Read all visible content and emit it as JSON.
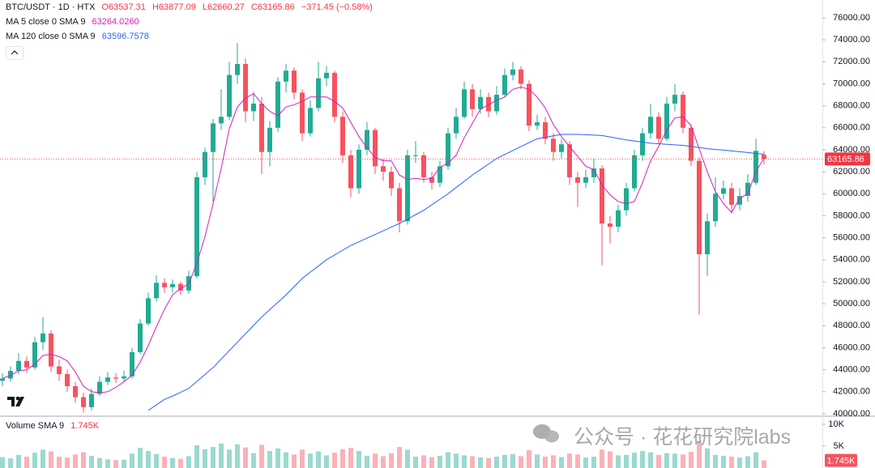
{
  "chart_data": {
    "type": "candlestick",
    "title": "BTC/USDT · 1D · HTX",
    "legend_ohlc": [
      "O63537.31",
      "H63877.09",
      "L62660.27",
      "C63165.86",
      "−371.45 (−0.58%)"
    ],
    "up_color": "#22ab94",
    "down_color": "#f7525f",
    "grid": false,
    "ylim": [
      39850,
      77620
    ],
    "yticks": [
      {
        "value": 40000,
        "label": "40000.00"
      },
      {
        "value": 42000,
        "label": "42000.00"
      },
      {
        "value": 44000,
        "label": "44000.00"
      },
      {
        "value": 46000,
        "label": "46000.00"
      },
      {
        "value": 48000,
        "label": "48000.00"
      },
      {
        "value": 50000,
        "label": "50000.00"
      },
      {
        "value": 52000,
        "label": "52000.00"
      },
      {
        "value": 54000,
        "label": "54000.00"
      },
      {
        "value": 56000,
        "label": "56000.00"
      },
      {
        "value": 58000,
        "label": "58000.00"
      },
      {
        "value": 60000,
        "label": "60000.00"
      },
      {
        "value": 62000,
        "label": "62000.00"
      },
      {
        "value": 64000,
        "label": "64000.00"
      },
      {
        "value": 66000,
        "label": "66000.00"
      },
      {
        "value": 68000,
        "label": "68000.00"
      },
      {
        "value": 70000,
        "label": "70000.00"
      },
      {
        "value": 72000,
        "label": "72000.00"
      },
      {
        "value": 74000,
        "label": "74000.00"
      },
      {
        "value": 76000,
        "label": "76000.00"
      }
    ],
    "open": [
      43000,
      43200,
      43900,
      44800,
      44200,
      46500,
      47300,
      44300,
      43600,
      42500,
      41500,
      40600,
      41800,
      42900,
      43300,
      43200,
      43400,
      45600,
      48200,
      50500,
      51900,
      51500,
      51800,
      51200,
      52500,
      61500,
      63800,
      66400,
      67000,
      70800,
      71800,
      67500,
      68200,
      63800,
      66000,
      70200,
      71200,
      69200,
      65500,
      67800,
      70500,
      71000,
      67000,
      63500,
      60500,
      64000,
      65800,
      62500,
      62000,
      60500,
      57500,
      63500,
      63500,
      61500,
      61000,
      62500,
      65500,
      67000,
      69500,
      67700,
      68800,
      67500,
      69000,
      70800,
      71300,
      70000,
      66200,
      66500,
      65000,
      63800,
      64500,
      61500,
      61000,
      61500,
      62300,
      57300,
      57000,
      58500,
      60500,
      63500,
      65500,
      67000,
      65000,
      68200,
      69000,
      66000,
      63000,
      54500,
      57500,
      60000,
      60500,
      59000,
      59800,
      61000,
      63537.31
    ],
    "high": [
      43700,
      44300,
      45500,
      45200,
      47000,
      48800,
      47600,
      44900,
      44000,
      42900,
      41900,
      42300,
      43400,
      43800,
      43700,
      43900,
      46000,
      48600,
      51000,
      52600,
      52300,
      52200,
      52000,
      53000,
      62000,
      64200,
      66800,
      69500,
      72000,
      73700,
      72300,
      69300,
      68800,
      66600,
      70600,
      71800,
      71500,
      69500,
      68500,
      72000,
      71600,
      71200,
      67500,
      64000,
      64500,
      66500,
      66000,
      63200,
      62500,
      61000,
      64000,
      64800,
      63800,
      62000,
      63000,
      66000,
      67800,
      70200,
      70000,
      69500,
      69200,
      69800,
      71400,
      72000,
      71600,
      70300,
      67200,
      67000,
      65500,
      65000,
      64800,
      62000,
      62200,
      63200,
      62600,
      58000,
      59000,
      61000,
      64000,
      66000,
      68200,
      67400,
      68800,
      70000,
      69300,
      66300,
      63300,
      58200,
      61500,
      61200,
      61000,
      60500,
      61800,
      65000,
      63877.09
    ],
    "low": [
      42500,
      42900,
      43600,
      43700,
      44000,
      45800,
      43800,
      43000,
      42000,
      41000,
      40100,
      40300,
      41600,
      42600,
      42800,
      42900,
      43200,
      45400,
      48000,
      50200,
      51000,
      51000,
      50800,
      50900,
      52300,
      60800,
      59300,
      65800,
      66700,
      70000,
      66500,
      66600,
      61800,
      62500,
      65600,
      69200,
      68600,
      64800,
      65200,
      67500,
      69800,
      66500,
      62800,
      59700,
      60000,
      63500,
      61800,
      61200,
      59800,
      56500,
      57200,
      62800,
      61000,
      60400,
      60600,
      62200,
      65000,
      66800,
      67000,
      67300,
      67000,
      67200,
      68800,
      70300,
      69500,
      65700,
      65800,
      64500,
      63000,
      63200,
      60800,
      58800,
      60500,
      61000,
      53500,
      55500,
      56500,
      58000,
      60200,
      63000,
      65000,
      64500,
      64800,
      67500,
      65500,
      62500,
      49000,
      52500,
      57000,
      59500,
      58200,
      58500,
      59300,
      60800,
      62660.27
    ],
    "close": [
      43200,
      43900,
      44800,
      44200,
      46500,
      47300,
      44300,
      43600,
      42500,
      41500,
      40600,
      41800,
      42900,
      43300,
      43200,
      43400,
      45600,
      48200,
      50500,
      51900,
      51500,
      51800,
      51200,
      52500,
      61500,
      63800,
      66400,
      67000,
      70800,
      71800,
      67500,
      68200,
      63800,
      66000,
      70200,
      71200,
      69200,
      65500,
      67800,
      70500,
      71000,
      67000,
      63500,
      60500,
      64000,
      65800,
      62500,
      62000,
      60500,
      57500,
      63500,
      63500,
      61500,
      61000,
      62500,
      65500,
      67000,
      69500,
      67700,
      68800,
      67500,
      69000,
      70800,
      71300,
      70000,
      66200,
      66500,
      65000,
      63800,
      64500,
      61500,
      61000,
      61500,
      62300,
      57300,
      57000,
      58500,
      60500,
      63500,
      65500,
      67000,
      65000,
      68200,
      69000,
      66000,
      63000,
      54500,
      57500,
      60000,
      60500,
      59000,
      59800,
      61000,
      63900,
      63165.86
    ],
    "indicators": [
      {
        "name": "MA 5 close 0 SMA 9",
        "value_label": "63264.0260",
        "color": "#d61ec0",
        "values": [
          43200,
          43500,
          43900,
          44000,
          44500,
          45300,
          45400,
          45200,
          44800,
          43800,
          42500,
          42000,
          41900,
          42000,
          42400,
          42900,
          43500,
          44700,
          46200,
          47900,
          49500,
          50800,
          51400,
          51800,
          53700,
          56100,
          59100,
          62300,
          65900,
          67900,
          68700,
          69100,
          68200,
          67500,
          67100,
          67900,
          68100,
          68400,
          68800,
          68800,
          68800,
          68400,
          67800,
          66500,
          65200,
          64200,
          63300,
          63000,
          63000,
          61700,
          61300,
          61400,
          61300,
          61400,
          62400,
          62800,
          63500,
          65100,
          66400,
          67700,
          68100,
          68500,
          68800,
          69500,
          69700,
          69500,
          68800,
          67800,
          66300,
          65200,
          64300,
          63400,
          62500,
          62200,
          60800,
          59900,
          59300,
          59100,
          59300,
          61000,
          63000,
          64300,
          65800,
          66900,
          67000,
          66200,
          64100,
          62000,
          60200,
          59100,
          58300,
          59600,
          60000,
          62000,
          63264.026
        ]
      },
      {
        "name": "MA 120 close 0 SMA 9",
        "value_label": "63596.7578",
        "color": "#2962ff",
        "values": [
          null,
          null,
          null,
          null,
          null,
          null,
          null,
          null,
          null,
          null,
          null,
          null,
          null,
          null,
          null,
          null,
          null,
          null,
          40300,
          40800,
          41300,
          41600,
          41950,
          42300,
          42930,
          43570,
          44200,
          44970,
          45730,
          46500,
          47270,
          48030,
          48800,
          49470,
          50130,
          50800,
          51550,
          52300,
          52870,
          53430,
          54000,
          54430,
          54870,
          55300,
          55630,
          55970,
          56300,
          56630,
          56970,
          57300,
          57700,
          58100,
          58500,
          59000,
          59500,
          60000,
          60570,
          61130,
          61700,
          62200,
          62700,
          63200,
          63570,
          63930,
          64300,
          64650,
          65000,
          65130,
          65270,
          65400,
          65400,
          65400,
          65370,
          65330,
          65300,
          65170,
          65030,
          64900,
          64800,
          64700,
          64600,
          64550,
          64500,
          64450,
          64400,
          64300,
          64200,
          64100,
          64030,
          63970,
          63900,
          63820,
          63750,
          63670,
          63596.7578
        ]
      }
    ],
    "volume": {
      "name": "Volume SMA 9",
      "value_label": "1.745K",
      "ylim": [
        0,
        11670
      ],
      "yticks": [
        {
          "value": 5000,
          "label": "5K"
        },
        {
          "value": 10000,
          "label": "10K"
        }
      ],
      "values": [
        2500,
        2200,
        3000,
        2600,
        3500,
        4200,
        3800,
        2600,
        2400,
        3100,
        3600,
        2800,
        2300,
        2000,
        1800,
        1900,
        3300,
        4600,
        3900,
        3200,
        2600,
        2300,
        2100,
        2700,
        5200,
        4300,
        4800,
        5600,
        4200,
        5400,
        4700,
        3400,
        5300,
        3900,
        4500,
        3600,
        3100,
        4200,
        3300,
        3800,
        2900,
        3500,
        4300,
        4600,
        3900,
        2800,
        3300,
        2700,
        3400,
        4800,
        4200,
        2600,
        2900,
        2500,
        2800,
        3600,
        3300,
        2900,
        2700,
        2400,
        2300,
        2600,
        3000,
        3200,
        2700,
        4100,
        3100,
        2600,
        2900,
        2500,
        3300,
        3100,
        2400,
        2600,
        4200,
        3800,
        2900,
        3000,
        3500,
        3900,
        3600,
        3000,
        3400,
        3300,
        3100,
        3700,
        6200,
        4500,
        3000,
        2800,
        2600,
        2400,
        2700,
        3600,
        1745
      ]
    },
    "watermark": "公众号 · 花花研究院labs"
  }
}
